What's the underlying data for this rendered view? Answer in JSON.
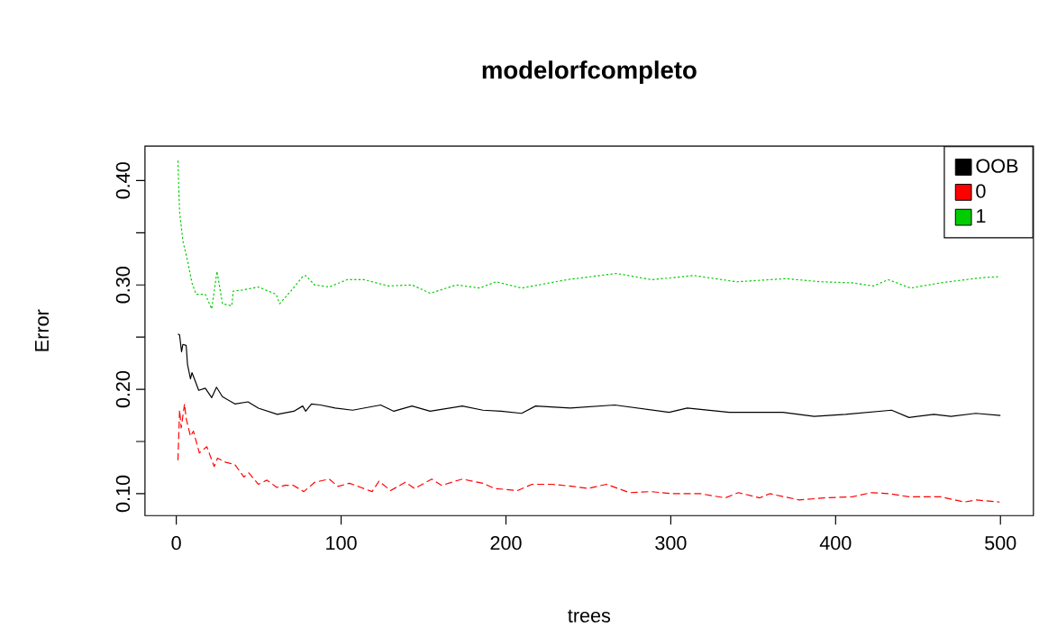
{
  "chart_data": {
    "type": "line",
    "title": "modelorfcompleto",
    "xlabel": "trees",
    "ylabel": "Error",
    "xlim": [
      -19,
      520
    ],
    "ylim": [
      0.079,
      0.433
    ],
    "xticks": [
      0,
      100,
      200,
      300,
      400,
      500
    ],
    "yticks": [
      {
        "value": 0.1,
        "label": "0.10"
      },
      {
        "value": 0.15,
        "label": null
      },
      {
        "value": 0.2,
        "label": "0.20"
      },
      {
        "value": 0.25,
        "label": null
      },
      {
        "value": 0.3,
        "label": "0.30"
      },
      {
        "value": 0.35,
        "label": null
      },
      {
        "value": 0.4,
        "label": "0.40"
      }
    ],
    "legend": "top right",
    "grid": false,
    "series": [
      {
        "name": "OOB",
        "color": "#000000",
        "line_style": "solid",
        "x": [
          1,
          2,
          3.2,
          4,
          6,
          6.8,
          8.6,
          9.5,
          11,
          13.6,
          17.6,
          21.5,
          24.4,
          28,
          35.5,
          43.5,
          49.8,
          61.3,
          71.3,
          76.7,
          78.5,
          82,
          87.5,
          96.4,
          107,
          124,
          132,
          143,
          154,
          173.5,
          186,
          197,
          209.5,
          218,
          239,
          266,
          299,
          310,
          335.5,
          368,
          387,
          406,
          434,
          444.5,
          459.6,
          470,
          485,
          500
        ],
        "values": [
          0.253,
          0.252,
          0.236,
          0.243,
          0.242,
          0.224,
          0.21,
          0.216,
          0.21,
          0.199,
          0.201,
          0.192,
          0.202,
          0.193,
          0.186,
          0.188,
          0.182,
          0.176,
          0.179,
          0.184,
          0.179,
          0.186,
          0.185,
          0.182,
          0.18,
          0.185,
          0.179,
          0.184,
          0.179,
          0.184,
          0.18,
          0.179,
          0.177,
          0.184,
          0.182,
          0.185,
          0.178,
          0.182,
          0.178,
          0.178,
          0.174,
          0.176,
          0.18,
          0.173,
          0.176,
          0.174,
          0.177,
          0.175
        ]
      },
      {
        "name": "0",
        "color": "#ff0000",
        "line_style": "dashed",
        "x": [
          1,
          2,
          3,
          5,
          6,
          8.6,
          10.4,
          14,
          18.5,
          23,
          25,
          30,
          35.5,
          41,
          44,
          49.8,
          55,
          61,
          66,
          71,
          77.4,
          84,
          92.8,
          98,
          105,
          112,
          118.8,
          123,
          130,
          139,
          144.6,
          155,
          161,
          173.5,
          186,
          193,
          207,
          215.8,
          228,
          241,
          249.6,
          261,
          275,
          288,
          301,
          318,
          333,
          341,
          354,
          360,
          378,
          393,
          410,
          421.6,
          433,
          444.5,
          464,
          478,
          485.5,
          499.5
        ],
        "values": [
          0.132,
          0.18,
          0.163,
          0.186,
          0.172,
          0.155,
          0.16,
          0.139,
          0.145,
          0.126,
          0.134,
          0.13,
          0.128,
          0.116,
          0.12,
          0.109,
          0.113,
          0.106,
          0.108,
          0.108,
          0.102,
          0.111,
          0.114,
          0.107,
          0.11,
          0.106,
          0.102,
          0.112,
          0.103,
          0.111,
          0.105,
          0.114,
          0.108,
          0.114,
          0.11,
          0.105,
          0.103,
          0.109,
          0.109,
          0.107,
          0.105,
          0.109,
          0.101,
          0.102,
          0.1,
          0.1,
          0.096,
          0.101,
          0.096,
          0.1,
          0.094,
          0.096,
          0.097,
          0.101,
          0.1,
          0.097,
          0.097,
          0.092,
          0.094,
          0.092
        ]
      },
      {
        "name": "1",
        "color": "#00cd00",
        "line_style": "dotted",
        "x": [
          1,
          2,
          4,
          7,
          9.5,
          12,
          17.6,
          21.5,
          24.7,
          28,
          33.7,
          34.5,
          39.8,
          49.8,
          60.6,
          62.7,
          69.5,
          76.7,
          78.5,
          83.9,
          92.8,
          103.6,
          114,
          128.7,
          143,
          154,
          170,
          184,
          194,
          209.5,
          237,
          267,
          288.5,
          314,
          340,
          369.7,
          391,
          410,
          423,
          432,
          445.5,
          463.7,
          489,
          500
        ],
        "values": [
          0.419,
          0.37,
          0.342,
          0.322,
          0.302,
          0.291,
          0.291,
          0.277,
          0.313,
          0.282,
          0.28,
          0.294,
          0.295,
          0.298,
          0.291,
          0.282,
          0.294,
          0.308,
          0.309,
          0.3,
          0.298,
          0.305,
          0.305,
          0.299,
          0.3,
          0.292,
          0.3,
          0.297,
          0.303,
          0.297,
          0.305,
          0.311,
          0.305,
          0.309,
          0.303,
          0.306,
          0.303,
          0.302,
          0.299,
          0.305,
          0.297,
          0.302,
          0.307,
          0.308
        ]
      }
    ]
  }
}
